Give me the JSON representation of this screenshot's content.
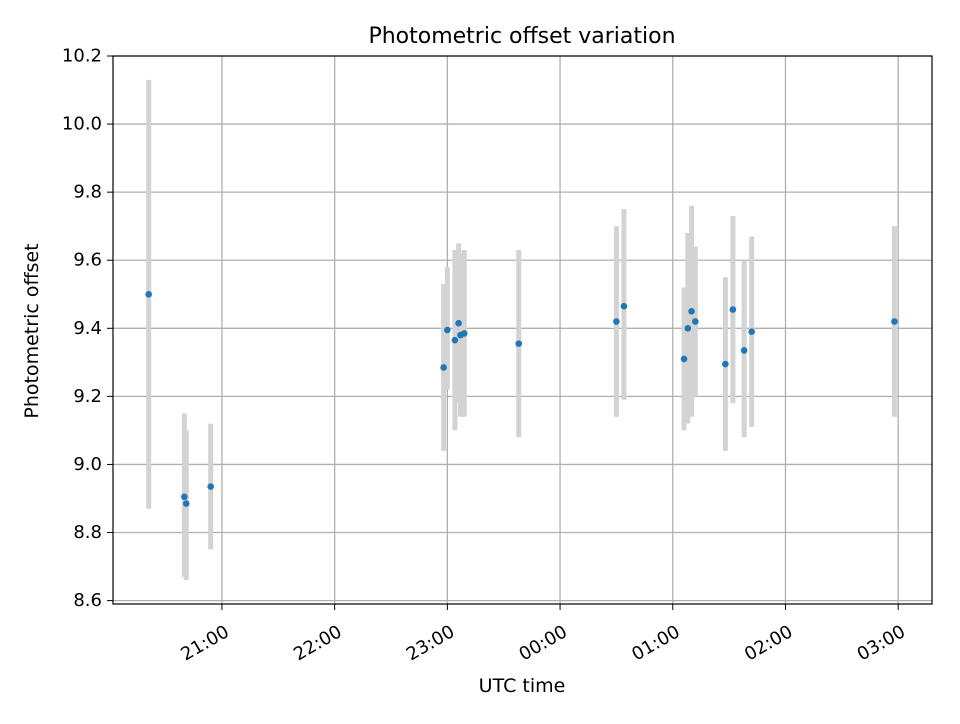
{
  "chart_data": {
    "type": "scatter",
    "title": "Photometric offset variation",
    "xlabel": "UTC time",
    "ylabel": "Photometric offset",
    "xlim": [
      "20:02",
      "03:18"
    ],
    "ylim": [
      8.59,
      10.2
    ],
    "x_ticks": [
      "21:00",
      "22:00",
      "23:00",
      "00:00",
      "01:00",
      "02:00",
      "03:00"
    ],
    "y_ticks": [
      "8.6",
      "8.8",
      "9.0",
      "9.2",
      "9.4",
      "9.6",
      "9.8",
      "10.0",
      "10.2"
    ],
    "grid": true,
    "marker_color": "#1f77b4",
    "errorbar_color": "#d3d3d3",
    "points": [
      {
        "x": "20:21",
        "y": 9.5,
        "lo": 8.87,
        "hi": 10.13
      },
      {
        "x": "20:40",
        "y": 8.905,
        "lo": 8.67,
        "hi": 9.15
      },
      {
        "x": "20:41",
        "y": 8.885,
        "lo": 8.66,
        "hi": 9.1
      },
      {
        "x": "20:54",
        "y": 8.935,
        "lo": 8.75,
        "hi": 9.12
      },
      {
        "x": "22:58",
        "y": 9.285,
        "lo": 9.04,
        "hi": 9.53
      },
      {
        "x": "23:00",
        "y": 9.395,
        "lo": 9.22,
        "hi": 9.58
      },
      {
        "x": "23:04",
        "y": 9.365,
        "lo": 9.1,
        "hi": 9.63
      },
      {
        "x": "23:06",
        "y": 9.415,
        "lo": 9.18,
        "hi": 9.65
      },
      {
        "x": "23:07",
        "y": 9.38,
        "lo": 9.14,
        "hi": 9.62
      },
      {
        "x": "23:09",
        "y": 9.385,
        "lo": 9.14,
        "hi": 9.63
      },
      {
        "x": "23:38",
        "y": 9.355,
        "lo": 9.08,
        "hi": 9.63
      },
      {
        "x": "00:30",
        "y": 9.42,
        "lo": 9.14,
        "hi": 9.7
      },
      {
        "x": "00:34",
        "y": 9.465,
        "lo": 9.19,
        "hi": 9.75
      },
      {
        "x": "01:06",
        "y": 9.31,
        "lo": 9.1,
        "hi": 9.52
      },
      {
        "x": "01:08",
        "y": 9.4,
        "lo": 9.12,
        "hi": 9.68
      },
      {
        "x": "01:10",
        "y": 9.45,
        "lo": 9.14,
        "hi": 9.76
      },
      {
        "x": "01:12",
        "y": 9.42,
        "lo": 9.2,
        "hi": 9.64
      },
      {
        "x": "01:28",
        "y": 9.295,
        "lo": 9.04,
        "hi": 9.55
      },
      {
        "x": "01:32",
        "y": 9.455,
        "lo": 9.18,
        "hi": 9.73
      },
      {
        "x": "01:38",
        "y": 9.335,
        "lo": 9.08,
        "hi": 9.6
      },
      {
        "x": "01:42",
        "y": 9.39,
        "lo": 9.11,
        "hi": 9.67
      },
      {
        "x": "02:58",
        "y": 9.42,
        "lo": 9.14,
        "hi": 9.7
      }
    ]
  }
}
